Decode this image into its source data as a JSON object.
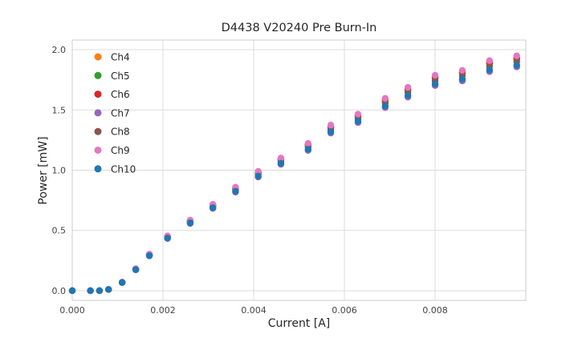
{
  "chart_data": {
    "type": "scatter",
    "title": "D4438 V20240 Pre Burn-In",
    "xlabel": "Current [A]",
    "ylabel": "Power [mW]",
    "xlim": [
      0,
      0.01
    ],
    "ylim": [
      -0.08,
      2.08
    ],
    "xticks": [
      0.0,
      0.002,
      0.004,
      0.006,
      0.008
    ],
    "yticks": [
      0.0,
      0.5,
      1.0,
      1.5,
      2.0
    ],
    "grid": true,
    "legend_position": "upper left",
    "style": {
      "background": "#ffffff",
      "grid_color": "#dcdcdc",
      "frame_color": "#cccccc",
      "marker_radius": 4.2
    },
    "x": [
      0.0,
      0.0004,
      0.0006,
      0.0008,
      0.0011,
      0.0014,
      0.0017,
      0.0021,
      0.0026,
      0.0031,
      0.0036,
      0.0041,
      0.0046,
      0.0052,
      0.0057,
      0.0063,
      0.0069,
      0.0074,
      0.008,
      0.0086,
      0.0092,
      0.0098
    ],
    "series": [
      {
        "name": "Ch4",
        "color": "#ff7f0e",
        "values": [
          0,
          0,
          0,
          0.01,
          0.07,
          0.18,
          0.3,
          0.45,
          0.58,
          0.71,
          0.85,
          0.98,
          1.09,
          1.21,
          1.36,
          1.45,
          1.58,
          1.67,
          1.77,
          1.81,
          1.89,
          1.93
        ]
      },
      {
        "name": "Ch5",
        "color": "#2ca02c",
        "values": [
          0,
          0,
          0,
          0.01,
          0.07,
          0.179,
          0.299,
          0.448,
          0.577,
          0.706,
          0.846,
          0.975,
          1.085,
          1.204,
          1.353,
          1.443,
          1.572,
          1.662,
          1.761,
          1.801,
          1.881,
          1.92
        ]
      },
      {
        "name": "Ch6",
        "color": "#d62728",
        "values": [
          0,
          0,
          0,
          0.01,
          0.07,
          0.18,
          0.301,
          0.451,
          0.581,
          0.711,
          0.852,
          0.982,
          1.092,
          1.212,
          1.363,
          1.453,
          1.583,
          1.673,
          1.774,
          1.814,
          1.894,
          1.934
        ]
      },
      {
        "name": "Ch7",
        "color": "#9467bd",
        "values": [
          0,
          0,
          0,
          0.01,
          0.067,
          0.173,
          0.289,
          0.433,
          0.558,
          0.683,
          0.818,
          0.943,
          1.049,
          1.164,
          1.308,
          1.395,
          1.52,
          1.607,
          1.703,
          1.741,
          1.818,
          1.857
        ]
      },
      {
        "name": "Ch8",
        "color": "#8c564b",
        "values": [
          0,
          0,
          0,
          0.01,
          0.069,
          0.177,
          0.296,
          0.443,
          0.571,
          0.699,
          0.837,
          0.965,
          1.074,
          1.192,
          1.34,
          1.428,
          1.556,
          1.645,
          1.743,
          1.783,
          1.862,
          1.901
        ]
      },
      {
        "name": "Ch9",
        "color": "#e377c2",
        "values": [
          0,
          0,
          0,
          0.01,
          0.071,
          0.182,
          0.303,
          0.455,
          0.586,
          0.717,
          0.859,
          0.99,
          1.101,
          1.222,
          1.374,
          1.465,
          1.596,
          1.687,
          1.788,
          1.828,
          1.909,
          1.949
        ]
      },
      {
        "name": "Ch10",
        "color": "#1f77b4",
        "values": [
          0,
          0,
          0,
          0.01,
          0.068,
          0.175,
          0.291,
          0.437,
          0.563,
          0.689,
          0.825,
          0.951,
          1.057,
          1.174,
          1.319,
          1.407,
          1.533,
          1.62,
          1.717,
          1.756,
          1.833,
          1.872
        ]
      }
    ]
  }
}
